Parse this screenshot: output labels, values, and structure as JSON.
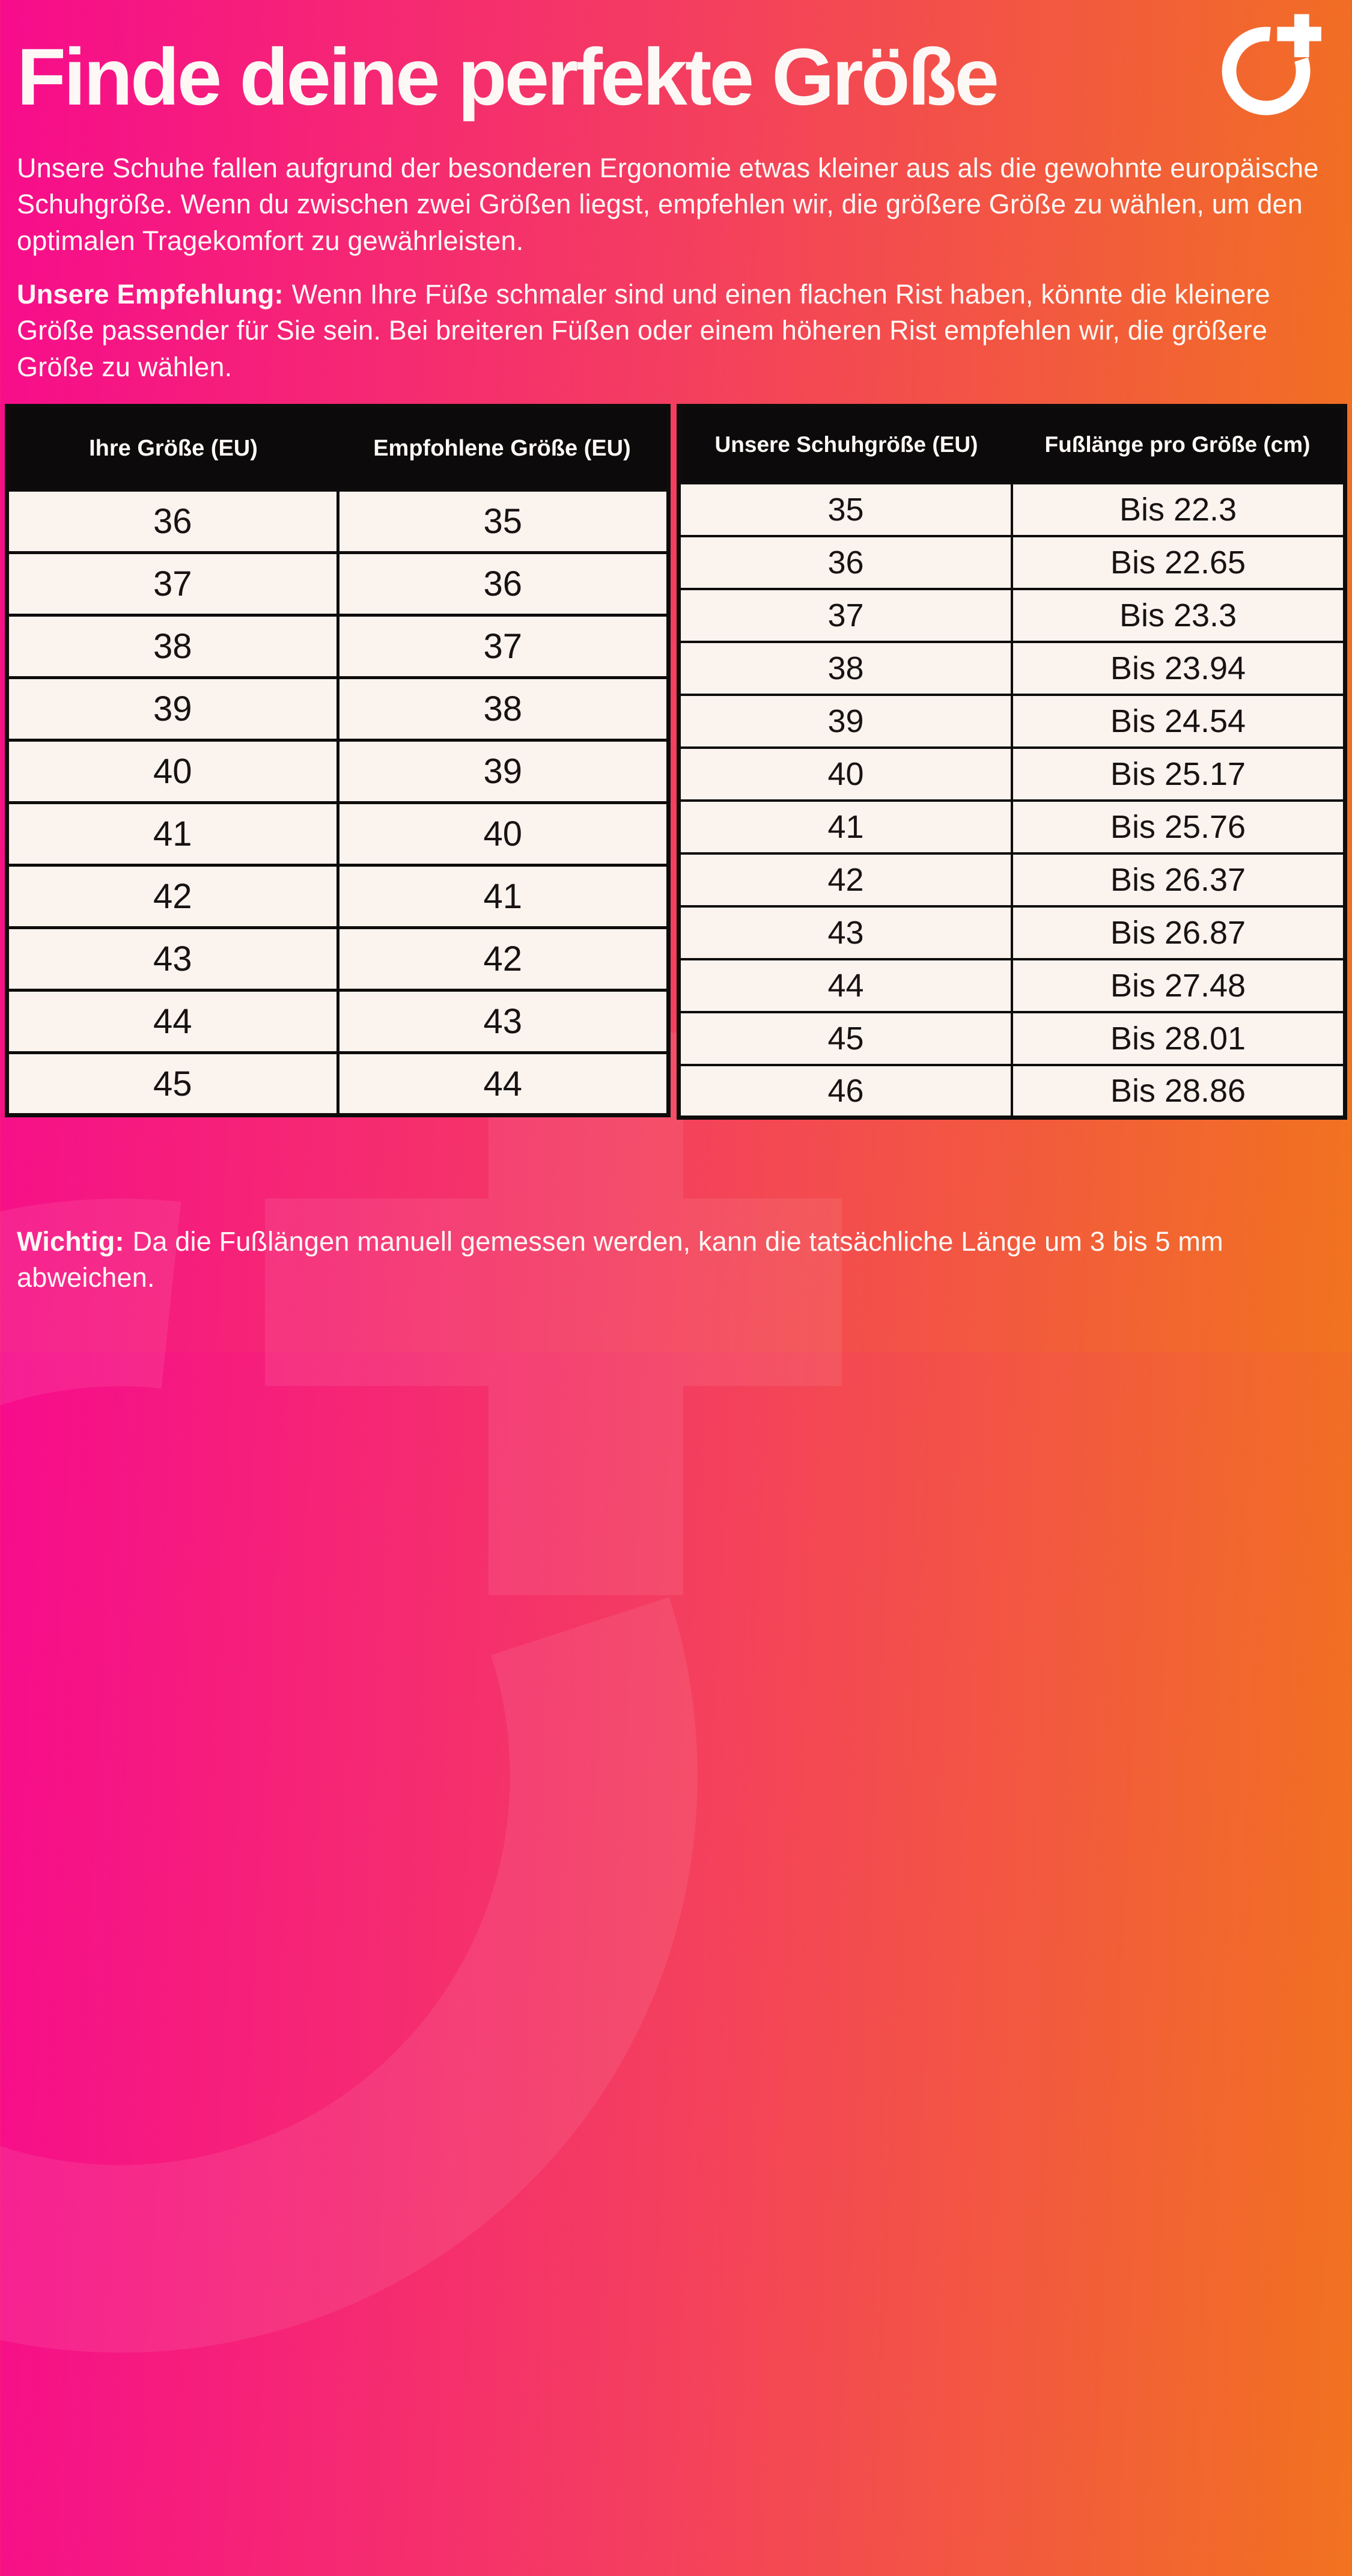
{
  "page": {
    "title": "Finde deine perfekte Größe",
    "intro": "Unsere Schuhe fallen aufgrund der besonderen Ergonomie etwas kleiner aus als die gewohnte europäische Schuhgröße. Wenn du zwischen zwei Größen liegst, empfehlen wir, die größere Größe zu wählen, um den optimalen Tragekomfort zu gewährleisten.",
    "recommendation_label": "Unsere Empfehlung:",
    "recommendation_text": "Wenn Ihre Füße schmaler sind und einen flachen Rist haben, könnte die kleinere Größe passender für Sie sein. Bei breiteren Füßen oder einem höheren Rist empfehlen wir, die größere Größe zu wählen.",
    "note_label": "Wichtig:",
    "note_text": "Da die Fußlängen manuell gemessen werden, kann die tatsächliche Länge um 3 bis 5 mm abweichen."
  },
  "logo": {
    "name": "circle-plus-logo"
  },
  "size_recommendation_table": {
    "headers": [
      "Ihre Größe (EU)",
      "Empfohlene Größe (EU)"
    ],
    "rows": [
      [
        "36",
        "35"
      ],
      [
        "37",
        "36"
      ],
      [
        "38",
        "37"
      ],
      [
        "39",
        "38"
      ],
      [
        "40",
        "39"
      ],
      [
        "41",
        "40"
      ],
      [
        "42",
        "41"
      ],
      [
        "43",
        "42"
      ],
      [
        "44",
        "43"
      ],
      [
        "45",
        "44"
      ]
    ]
  },
  "foot_length_table": {
    "headers": [
      "Unsere Schuhgröße (EU)",
      "Fußlänge pro Größe (cm)"
    ],
    "rows": [
      [
        "35",
        "Bis 22.3"
      ],
      [
        "36",
        "Bis 22.65"
      ],
      [
        "37",
        "Bis 23.3"
      ],
      [
        "38",
        "Bis 23.94"
      ],
      [
        "39",
        "Bis 24.54"
      ],
      [
        "40",
        "Bis 25.17"
      ],
      [
        "41",
        "Bis 25.76"
      ],
      [
        "42",
        "Bis 26.37"
      ],
      [
        "43",
        "Bis 26.87"
      ],
      [
        "44",
        "Bis 27.48"
      ],
      [
        "45",
        "Bis 28.01"
      ],
      [
        "46",
        "Bis 28.86"
      ]
    ]
  },
  "colors": {
    "gradient_start": "#f70c8c",
    "gradient_mid": "#f43f5e",
    "gradient_end": "#f1731f",
    "table_header_bg": "#0c0a0a",
    "table_cell_bg": "#faf3ee",
    "text_light": "#fdf8f5",
    "text_dark": "#171313"
  }
}
